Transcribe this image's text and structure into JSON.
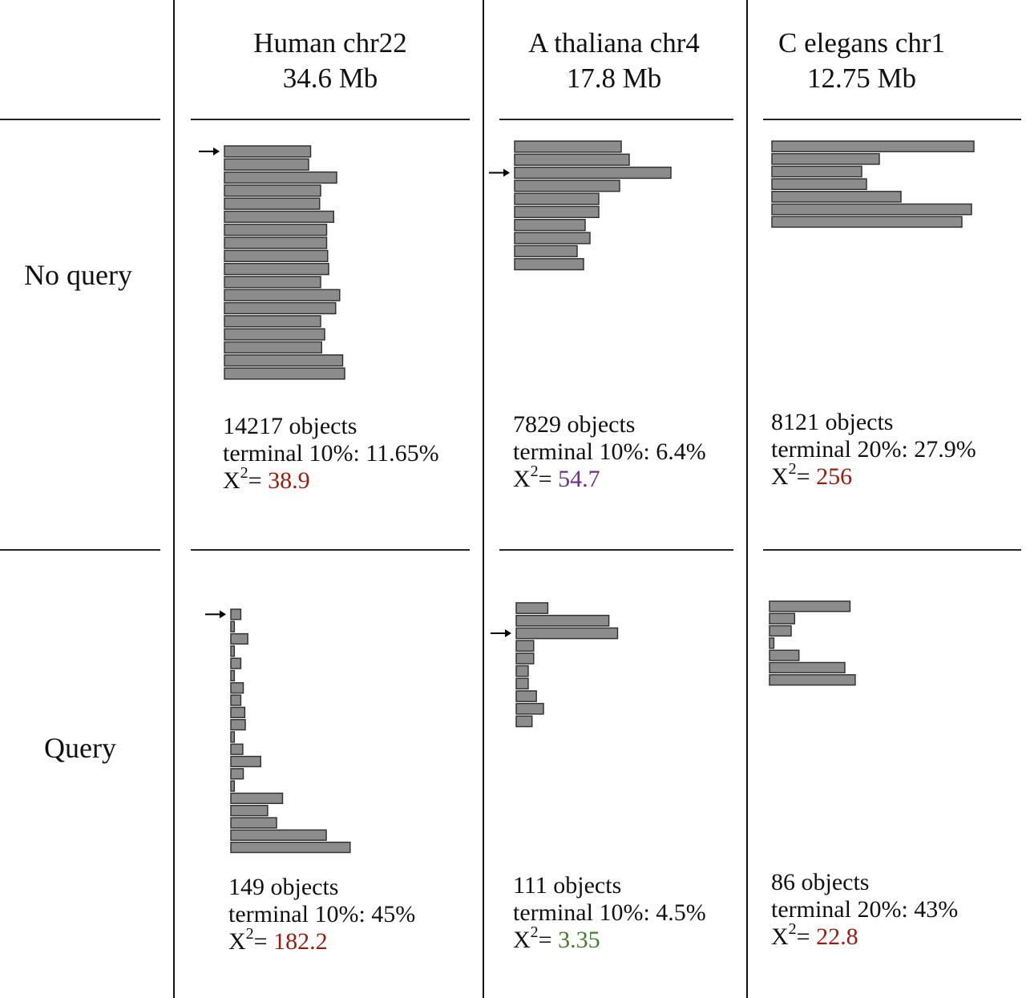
{
  "columns": [
    {
      "name": "Human chr22",
      "size": "34.6 Mb"
    },
    {
      "name": "A thaliana chr4",
      "size": "17.8 Mb"
    },
    {
      "name": "C elegans chr1",
      "size": "12.75 Mb"
    }
  ],
  "rows": [
    {
      "label": "No query"
    },
    {
      "label": "Query"
    }
  ],
  "colors": {
    "bar_fill": "#8c8c8c",
    "bar_stroke": "#333333",
    "chi_red": "#9b1c0c",
    "chi_purple": "#6b2f8a",
    "chi_green": "#3f7f2a"
  },
  "chart_data": [
    {
      "type": "bar",
      "orientation": "horizontal",
      "column": "Human chr22",
      "row": "No query",
      "values": [
        8.6,
        8.4,
        11.2,
        9.6,
        9.5,
        10.9,
        10.2,
        10.2,
        10.3,
        10.4,
        9.6,
        11.5,
        11.1,
        9.6,
        10.0,
        9.7,
        11.8,
        12.0
      ],
      "arrow_at_bin": 0,
      "stats": {
        "objects": "14217 objects",
        "terminal": "terminal 10%: 11.65%",
        "chi_label": "X",
        "chi_sup": "2",
        "chi_eq": "= ",
        "chi_value": "38.9",
        "chi_color": "#9b1c0c"
      }
    },
    {
      "type": "bar",
      "orientation": "horizontal",
      "column": "A thaliana chr4",
      "row": "No query",
      "values": [
        13.3,
        14.3,
        19.5,
        13.1,
        10.5,
        10.5,
        8.8,
        9.4,
        7.8,
        8.6
      ],
      "arrow_at_bin": 2,
      "stats": {
        "objects": "7829 objects",
        "terminal": "terminal 10%: 6.4%",
        "chi_label": "X",
        "chi_sup": "2",
        "chi_eq": "= ",
        "chi_value": "54.7",
        "chi_color": "#6b2f8a"
      }
    },
    {
      "type": "bar",
      "orientation": "horizontal",
      "column": "C elegans chr1",
      "row": "No query",
      "values": [
        25.2,
        13.4,
        11.2,
        11.8,
        16.1,
        24.9,
        23.7
      ],
      "stats": {
        "objects": "8121 objects",
        "terminal": "terminal 20%: 27.9%",
        "chi_label": "X",
        "chi_sup": "2",
        "chi_eq": "= ",
        "chi_value": "256",
        "chi_color": "#9b1c0c"
      }
    },
    {
      "type": "bar",
      "orientation": "horizontal",
      "column": "Human chr22",
      "row": "Query",
      "values": [
        2.0,
        0.7,
        3.4,
        0.7,
        2.0,
        0.7,
        2.5,
        2.0,
        2.8,
        2.9,
        0.7,
        2.4,
        6.0,
        2.5,
        0.7,
        10.4,
        7.4,
        9.2,
        19.2,
        24.0
      ],
      "arrow_at_bin": 0,
      "stats": {
        "objects": "149 objects",
        "terminal": "terminal 10%: 45%",
        "chi_label": "X",
        "chi_sup": "2",
        "chi_eq": "= ",
        "chi_value": "182.2",
        "chi_color": "#9b1c0c"
      }
    },
    {
      "type": "bar",
      "orientation": "horizontal",
      "column": "A thaliana chr4",
      "row": "Query",
      "values": [
        5.8,
        17.0,
        18.6,
        3.2,
        3.2,
        2.2,
        2.2,
        3.7,
        5.0,
        2.9
      ],
      "arrow_at_bin": 2,
      "stats": {
        "objects": "111 objects",
        "terminal": "terminal 10%: 4.5%",
        "chi_label": "X",
        "chi_sup": "2",
        "chi_eq": "= ",
        "chi_value": "3.35",
        "chi_color": "#3f7f2a"
      }
    },
    {
      "type": "bar",
      "orientation": "horizontal",
      "column": "C elegans chr1",
      "row": "Query",
      "values": [
        9.3,
        2.9,
        2.5,
        0.5,
        3.4,
        8.7,
        9.9
      ],
      "stats": {
        "objects": "86 objects",
        "terminal": "terminal 20%: 43%",
        "chi_label": "X",
        "chi_sup": "2",
        "chi_eq": "= ",
        "chi_value": "22.8",
        "chi_color": "#9b1c0c"
      }
    }
  ]
}
